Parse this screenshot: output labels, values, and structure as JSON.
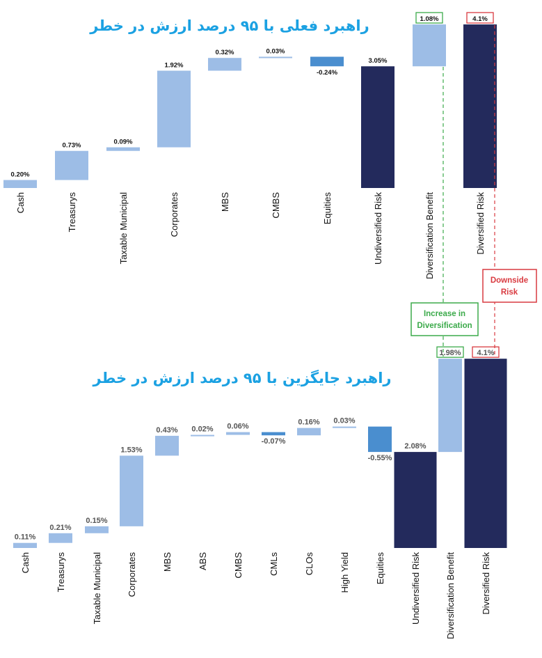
{
  "colors": {
    "light_bar": "#9DBDE6",
    "medium_bar": "#4A8ECF",
    "dark_bar": "#232A5C",
    "title": "#1BA1E2",
    "green": "#3BAA4A",
    "red": "#D93A40"
  },
  "annotations": {
    "increase_label_1": "Increase in",
    "increase_label_2": "Diversification",
    "downside_label_1": "Downside",
    "downside_label_2": "Risk"
  },
  "chart_data": [
    {
      "type": "waterfall",
      "title": "راهبرد فعلی با ۹۵ درصد ارزش در خطر",
      "categories": [
        "Cash",
        "Treasurys",
        "Taxable Municipal",
        "Corporates",
        "MBS",
        "CMBS",
        "Equities",
        "Undiversified Risk",
        "Diversification  Benefit",
        "Diversified  Risk"
      ],
      "values": [
        0.2,
        0.73,
        0.09,
        1.92,
        0.32,
        0.03,
        -0.24,
        3.05,
        1.08,
        4.1
      ],
      "value_labels": [
        "0.20%",
        "0.73%",
        "0.09%",
        "1.92%",
        "0.32%",
        "0.03%",
        "-0.24%",
        "3.05%",
        "1.08%",
        "4.1%"
      ],
      "kinds": [
        "delta",
        "delta",
        "delta",
        "delta",
        "delta",
        "delta",
        "delta",
        "total",
        "delta",
        "total"
      ],
      "colors": [
        "light",
        "light",
        "light",
        "light",
        "light",
        "light",
        "medium",
        "dark",
        "light",
        "dark"
      ],
      "boxed_labels": {
        "8": "green",
        "9": "red"
      },
      "unit": "%"
    },
    {
      "type": "waterfall",
      "title": "راهبرد جایگزین با ۹۵ درصد ارزش در خطر",
      "categories": [
        "Cash",
        "Treasurys",
        "Taxable Municipal",
        "Corporates",
        "MBS",
        "ABS",
        "CMBS",
        "CMLs",
        "CLOs",
        "High Yield",
        "Equities",
        "Undiversified Risk",
        "Diversification  Benefit",
        "Diversified  Risk"
      ],
      "values": [
        0.11,
        0.21,
        0.15,
        1.53,
        0.43,
        0.02,
        0.06,
        -0.07,
        0.16,
        0.03,
        -0.55,
        2.08,
        1.98,
        4.1
      ],
      "value_labels": [
        "0.11%",
        "0.21%",
        "0.15%",
        "1.53%",
        "0.43%",
        "0.02%",
        "0.06%",
        "-0.07%",
        "0.16%",
        "0.03%",
        "-0.55%",
        "2.08%",
        "1.98%",
        "4.1%"
      ],
      "kinds": [
        "delta",
        "delta",
        "delta",
        "delta",
        "delta",
        "delta",
        "delta",
        "delta",
        "delta",
        "delta",
        "delta",
        "total",
        "delta",
        "total"
      ],
      "colors": [
        "light",
        "light",
        "light",
        "light",
        "light",
        "light",
        "light",
        "medium",
        "light",
        "light",
        "medium",
        "dark",
        "light",
        "dark"
      ],
      "boxed_labels": {
        "12": "green",
        "13": "red"
      },
      "unit": "%"
    }
  ]
}
